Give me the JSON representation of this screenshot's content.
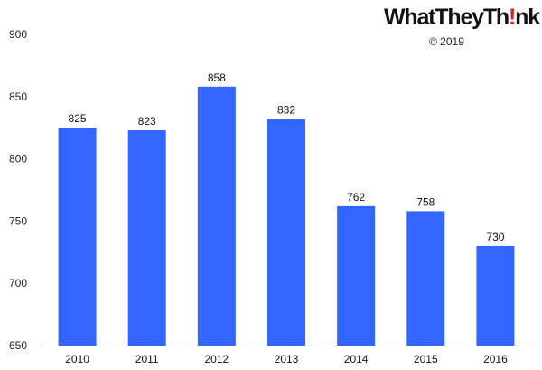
{
  "branding": {
    "logo_text_a": "WhatTheyTh",
    "logo_text_ex": "!",
    "logo_text_b": "nk",
    "copyright": "© 2019"
  },
  "chart_data": {
    "type": "bar",
    "categories": [
      "2010",
      "2011",
      "2012",
      "2013",
      "2014",
      "2015",
      "2016"
    ],
    "values": [
      825,
      823,
      858,
      832,
      762,
      758,
      730
    ],
    "title": "",
    "xlabel": "",
    "ylabel": "",
    "ylim": [
      650,
      900
    ],
    "yticks": [
      650,
      700,
      750,
      800,
      850,
      900
    ],
    "grid": false,
    "legend": "none",
    "bar_color": "#3366ff",
    "data_labels": true
  }
}
